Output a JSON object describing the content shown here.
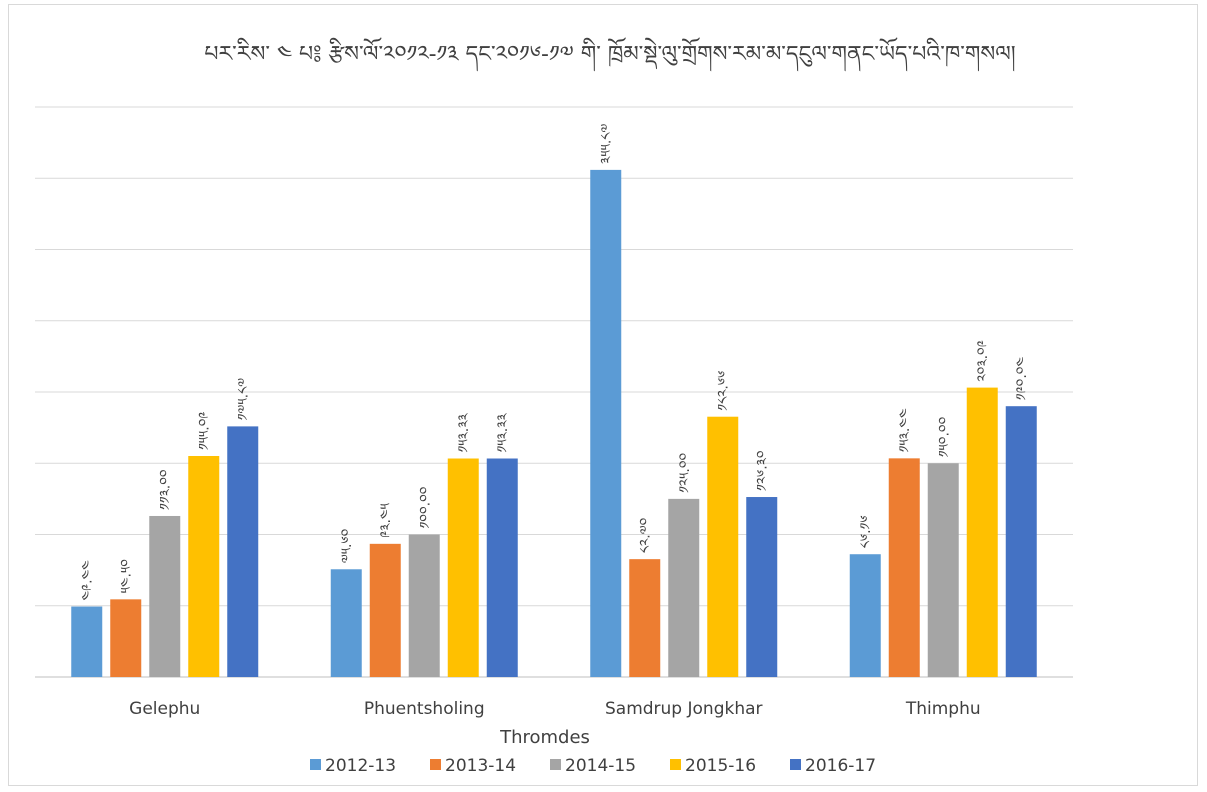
{
  "chart_data": {
    "type": "bar",
    "title": "པར་རིས་ ༤ པ༔ རྩིས་ལོ་༢༠༡༢-༡༣ དང་༢༠༡༦-༡༧ གི་ ཁྲོམ་སྡེ་ལུ་གྲོགས་རམ་མ་དངུལ་གནང་ཡོད་པའི་ཁ་གསལ།",
    "xlabel": "Thromdes",
    "ylabel": "",
    "categories": [
      "Gelephu",
      "Phuentsholing",
      "Samdrup Jongkhar",
      "Thimphu"
    ],
    "series": [
      {
        "name": "2012-13",
        "color": "#5b9bd5",
        "values": [
          49.44,
          75.6,
          355.87,
          86.16
        ],
        "labels": [
          "༤༩.༤༤",
          "༧༥.༦༠",
          "༣༥༥.༨༧",
          "༨༦.༡༦"
        ]
      },
      {
        "name": "2013-14",
        "color": "#ed7d31",
        "values": [
          54.5,
          93.45,
          82.7,
          153.44
        ],
        "labels": [
          "༥༤.༥༠",
          "༩༣.༤༥",
          "༨༢.༧༠",
          "༡༥༣.༤༤"
        ]
      },
      {
        "name": "2014-15",
        "color": "#a5a5a5",
        "values": [
          113.0,
          100.0,
          125.0,
          150.0
        ],
        "labels": [
          "༡༡༣.༠༠",
          "༡༠༠.༠༠",
          "༡༢༥.༠༠",
          "༡༥༠.༠༠"
        ]
      },
      {
        "name": "2015-16",
        "color": "#ffc000",
        "values": [
          155.09,
          153.33,
          182.66,
          203.09
        ],
        "labels": [
          "༡༥༥.༠༩",
          "༡༥༣.༣༣",
          "༡༨༢.༦༦",
          "༢༠༣.༠༩"
        ]
      },
      {
        "name": "2016-17",
        "color": "#4472c4",
        "values": [
          175.87,
          153.33,
          126.3,
          190.04
        ],
        "labels": [
          "༡༧༥.༨༧",
          "༡༥༣.༣༣",
          "༡༢༦.༣༠",
          "༡༩༠.༠༤"
        ]
      }
    ],
    "ylim": [
      0,
      400
    ],
    "y_gridlines": [
      0,
      50,
      100,
      150,
      200,
      250,
      300,
      350,
      400
    ],
    "y_tick_labels_shown": false,
    "grid": true,
    "legend_position": "bottom"
  }
}
